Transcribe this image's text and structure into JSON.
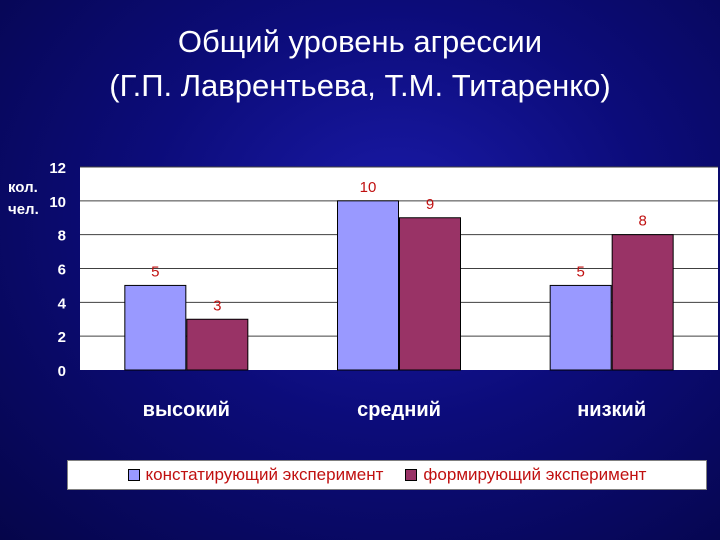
{
  "slide": {
    "title_line1": "Общий уровень агрессии",
    "title_line2": "(Г.П. Лаврентьева, Т.М. Титаренко)"
  },
  "colors": {
    "series1": "#9999ff",
    "series2": "#993366",
    "axis_text": "#ffffff",
    "data_label": "#c01010",
    "plot_bg": "#ffffff",
    "gridline": "#404040"
  },
  "chart_data": {
    "type": "bar",
    "categories": [
      "высокий",
      "средний",
      "низкий"
    ],
    "series": [
      {
        "name": "констатирующий эксперимент",
        "values": [
          5,
          10,
          5
        ]
      },
      {
        "name": "формирующий эксперимент",
        "values": [
          3,
          9,
          8
        ]
      }
    ],
    "ylabel": "кол. чел.",
    "ylim": [
      0,
      12
    ],
    "yticks": [
      "0",
      "2",
      "4",
      "6",
      "8",
      "10",
      "12"
    ],
    "grid": true,
    "legend_position": "bottom",
    "data_labels": true
  }
}
